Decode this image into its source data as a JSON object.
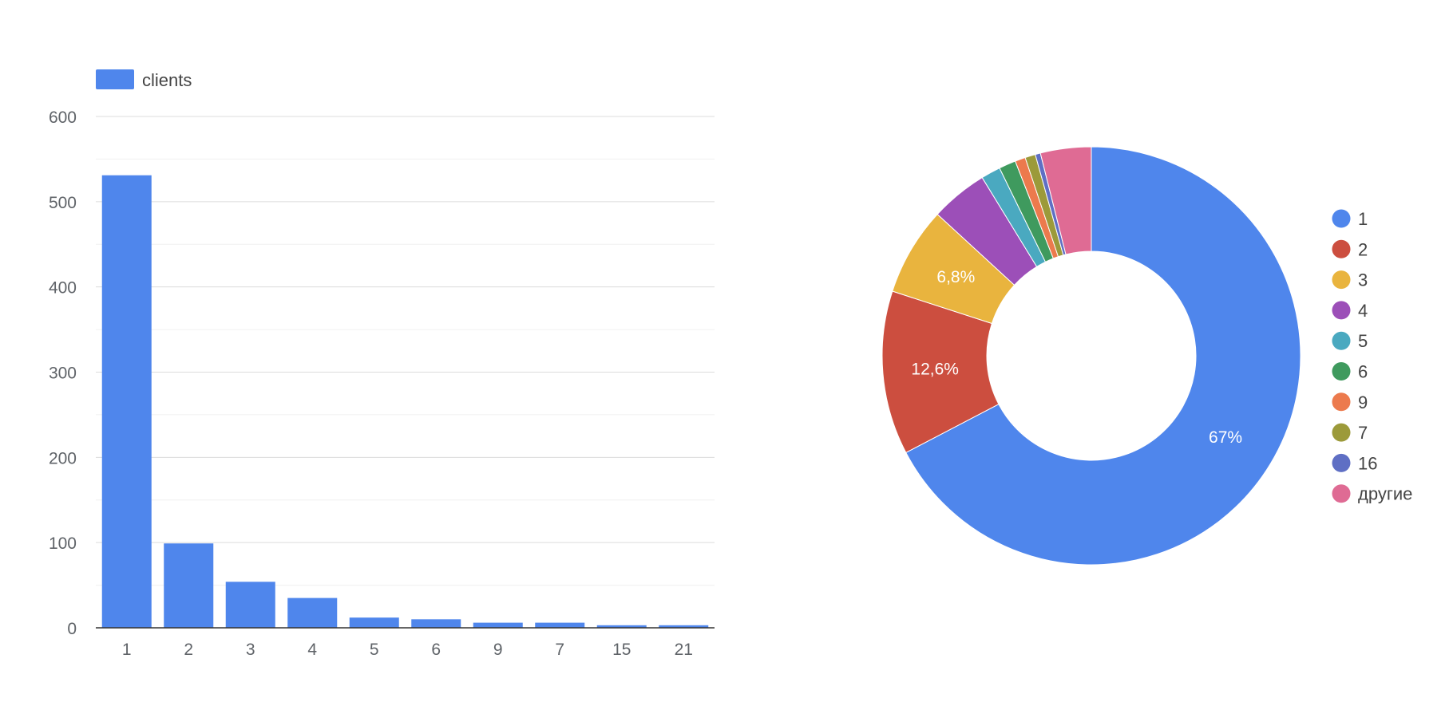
{
  "chart_data": [
    {
      "type": "bar",
      "legend": {
        "label": "clients",
        "color": "#4f86ec",
        "placement": "top-left"
      },
      "categories": [
        "1",
        "2",
        "3",
        "4",
        "5",
        "6",
        "9",
        "7",
        "15",
        "21"
      ],
      "series": [
        {
          "name": "clients",
          "values": [
            531,
            99,
            54,
            35,
            12,
            10,
            6,
            6,
            3,
            3
          ]
        }
      ],
      "ylim": [
        0,
        600
      ],
      "yticks": [
        "0",
        "100",
        "200",
        "300",
        "400",
        "500",
        "600"
      ],
      "grid": true,
      "bar_color": "#4f86ec"
    },
    {
      "type": "pie",
      "donut": true,
      "legend_placement": "right",
      "slices": [
        {
          "label": "1",
          "value": 67.0,
          "color": "#4f86ec",
          "display": "67%"
        },
        {
          "label": "2",
          "value": 12.6,
          "color": "#cc4e3f",
          "display": "12,6%"
        },
        {
          "label": "3",
          "value": 6.8,
          "color": "#e9b43e",
          "display": "6,8%"
        },
        {
          "label": "4",
          "value": 4.4,
          "color": "#9c4fb8",
          "display": ""
        },
        {
          "label": "5",
          "value": 1.5,
          "color": "#4aa9c0",
          "display": ""
        },
        {
          "label": "6",
          "value": 1.3,
          "color": "#3f9a5e",
          "display": ""
        },
        {
          "label": "9",
          "value": 0.8,
          "color": "#ec7a4d",
          "display": ""
        },
        {
          "label": "7",
          "value": 0.8,
          "color": "#9c9a3a",
          "display": ""
        },
        {
          "label": "16",
          "value": 0.4,
          "color": "#5f6fc4",
          "display": ""
        },
        {
          "label": "другие",
          "value": 3.9,
          "color": "#df6b94",
          "display": ""
        }
      ]
    }
  ]
}
